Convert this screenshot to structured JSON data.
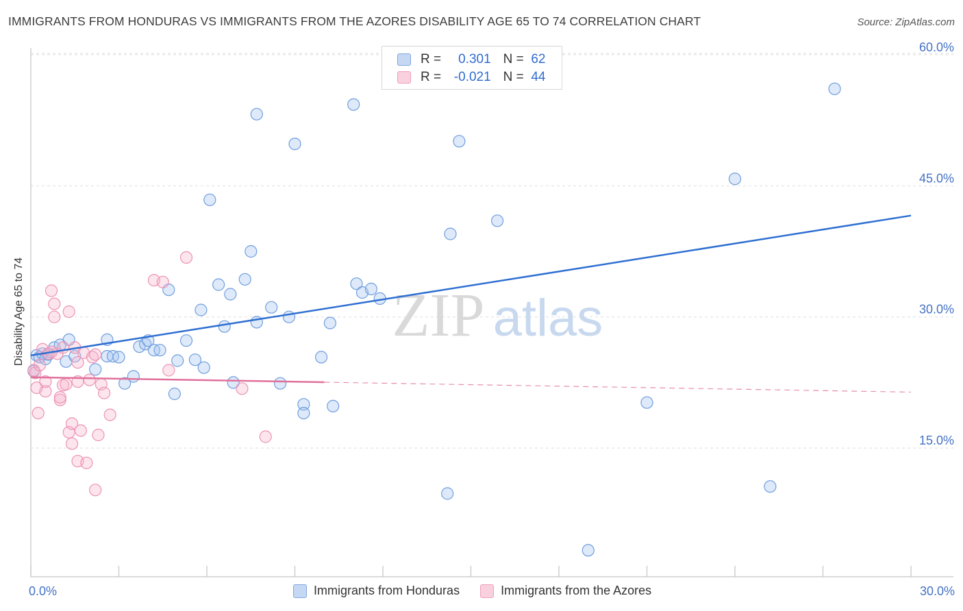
{
  "title": "IMMIGRANTS FROM HONDURAS VS IMMIGRANTS FROM THE AZORES DISABILITY AGE 65 TO 74 CORRELATION CHART",
  "source": "Source: ZipAtlas.com",
  "watermark": {
    "zip": "ZIP",
    "atlas": "atlas"
  },
  "legend_top": {
    "r_label": "R =",
    "n_label": "N =",
    "rows": [
      {
        "r": "0.301",
        "n": "62"
      },
      {
        "r": "-0.021",
        "n": "44"
      }
    ]
  },
  "chart_data": {
    "type": "scatter",
    "xlabel": "",
    "ylabel": "Disability Age 65 to 74",
    "xlim": [
      0,
      30
    ],
    "ylim": [
      0,
      62
    ],
    "x_ticks": [
      {
        "value": 0,
        "label": "0.0%"
      },
      {
        "value": 30,
        "label": "30.0%"
      }
    ],
    "y_ticks": [
      {
        "value": 15,
        "label": "15.0%"
      },
      {
        "value": 30,
        "label": "30.0%"
      },
      {
        "value": 45,
        "label": "45.0%"
      },
      {
        "value": 60,
        "label": "60.0%"
      }
    ],
    "grid": true,
    "legend_position": "bottom",
    "series": [
      {
        "name": "Immigrants from Honduras",
        "color": "#8fb4e8",
        "trend_color": "#2e6fd1",
        "trend": {
          "x0": 0,
          "y0": 25.6,
          "x1": 30,
          "y1": 41.6,
          "solid_until": 30
        },
        "points": [
          [
            0.2,
            25.6
          ],
          [
            0.3,
            25.4
          ],
          [
            0.4,
            25.8
          ],
          [
            0.5,
            25.2
          ],
          [
            0.6,
            25.7
          ],
          [
            0.8,
            26.5
          ],
          [
            1.0,
            26.8
          ],
          [
            1.2,
            24.9
          ],
          [
            1.3,
            27.4
          ],
          [
            1.5,
            25.5
          ],
          [
            2.2,
            24.0
          ],
          [
            2.6,
            25.5
          ],
          [
            2.6,
            27.4
          ],
          [
            2.8,
            25.5
          ],
          [
            3.0,
            25.4
          ],
          [
            3.2,
            22.4
          ],
          [
            3.5,
            23.2
          ],
          [
            3.7,
            26.6
          ],
          [
            3.9,
            26.9
          ],
          [
            4.0,
            27.3
          ],
          [
            4.2,
            26.2
          ],
          [
            4.4,
            26.2
          ],
          [
            4.7,
            33.1
          ],
          [
            4.9,
            21.2
          ],
          [
            5.0,
            25.0
          ],
          [
            5.3,
            27.3
          ],
          [
            5.6,
            25.1
          ],
          [
            5.8,
            30.8
          ],
          [
            5.9,
            24.2
          ],
          [
            6.1,
            43.4
          ],
          [
            6.4,
            33.7
          ],
          [
            6.6,
            28.9
          ],
          [
            6.8,
            32.6
          ],
          [
            6.9,
            22.5
          ],
          [
            7.3,
            34.3
          ],
          [
            7.5,
            37.5
          ],
          [
            7.7,
            29.4
          ],
          [
            7.7,
            53.2
          ],
          [
            8.2,
            31.1
          ],
          [
            8.5,
            22.4
          ],
          [
            8.8,
            30.0
          ],
          [
            9.0,
            49.8
          ],
          [
            9.3,
            20.0
          ],
          [
            9.3,
            19.0
          ],
          [
            9.9,
            25.4
          ],
          [
            10.2,
            29.3
          ],
          [
            10.3,
            19.8
          ],
          [
            11.0,
            54.3
          ],
          [
            11.1,
            33.8
          ],
          [
            11.3,
            32.8
          ],
          [
            11.6,
            33.2
          ],
          [
            11.9,
            32.1
          ],
          [
            14.2,
            9.8
          ],
          [
            14.3,
            39.5
          ],
          [
            14.6,
            50.1
          ],
          [
            15.9,
            41.0
          ],
          [
            19.0,
            3.3
          ],
          [
            21.0,
            20.2
          ],
          [
            24.0,
            45.8
          ],
          [
            25.2,
            10.6
          ],
          [
            27.4,
            56.1
          ],
          [
            0.1,
            23.8
          ]
        ]
      },
      {
        "name": "Immigrants from the Azores",
        "color": "#f4a6c0",
        "trend_color": "#e0709a",
        "trend": {
          "x0": 0,
          "y0": 23.1,
          "x1": 30,
          "y1": 21.4,
          "solid_until": 10.0
        },
        "points": [
          [
            0.1,
            23.9
          ],
          [
            0.15,
            23.6
          ],
          [
            0.2,
            21.9
          ],
          [
            0.25,
            19.0
          ],
          [
            0.3,
            24.5
          ],
          [
            0.4,
            26.3
          ],
          [
            0.5,
            21.5
          ],
          [
            0.5,
            22.6
          ],
          [
            0.6,
            25.8
          ],
          [
            0.7,
            33.0
          ],
          [
            0.7,
            26.0
          ],
          [
            0.8,
            30.0
          ],
          [
            0.8,
            31.5
          ],
          [
            0.9,
            25.8
          ],
          [
            1.0,
            20.5
          ],
          [
            1.0,
            20.8
          ],
          [
            1.1,
            26.5
          ],
          [
            1.1,
            22.2
          ],
          [
            1.2,
            22.3
          ],
          [
            1.3,
            16.8
          ],
          [
            1.3,
            30.6
          ],
          [
            1.4,
            17.8
          ],
          [
            1.4,
            15.5
          ],
          [
            1.5,
            26.5
          ],
          [
            1.6,
            22.6
          ],
          [
            1.6,
            24.8
          ],
          [
            1.6,
            13.5
          ],
          [
            1.7,
            17.0
          ],
          [
            1.8,
            25.9
          ],
          [
            1.9,
            13.3
          ],
          [
            2.0,
            22.8
          ],
          [
            2.1,
            25.4
          ],
          [
            2.2,
            10.2
          ],
          [
            2.2,
            25.7
          ],
          [
            2.3,
            16.5
          ],
          [
            2.4,
            22.3
          ],
          [
            2.5,
            21.3
          ],
          [
            2.7,
            18.8
          ],
          [
            4.2,
            34.2
          ],
          [
            4.5,
            34.0
          ],
          [
            4.7,
            23.9
          ],
          [
            5.3,
            36.8
          ],
          [
            7.2,
            21.8
          ],
          [
            8.0,
            16.3
          ]
        ]
      }
    ]
  }
}
